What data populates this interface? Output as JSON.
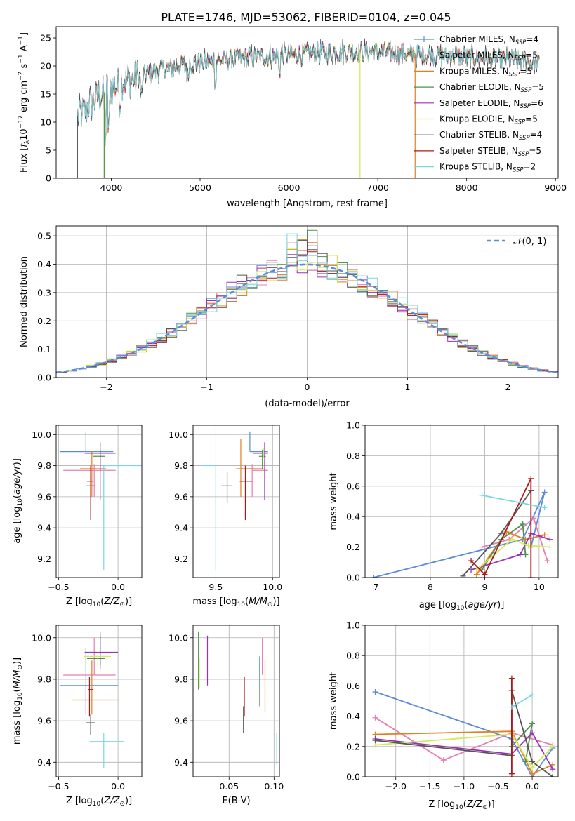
{
  "figure_title": "PLATE=1746, MJD=53062, FIBERID=0104, z=0.045",
  "colors": {
    "chabrier_miles": "#5b8bd9",
    "salpeter_miles": "#e57fb4",
    "kroupa_miles": "#e07f24",
    "chabrier_elodie": "#4f8f4f",
    "salpeter_elodie": "#9a32b5",
    "kroupa_elodie": "#d4ea5a",
    "chabrier_stelib": "#555555",
    "salpeter_stelib": "#aa1818",
    "kroupa_stelib": "#7dd6dd",
    "grid": "#b0b0b0",
    "normal": "#5b8bd9"
  },
  "chart_data": [
    {
      "id": "spectrum",
      "type": "line",
      "xlabel": "wavelength [Angstrom, rest frame]",
      "ylabel": "Flux [f_λ10^-17 erg cm^-2 s^-1 A^-1]",
      "xlim": [
        3380,
        9030
      ],
      "ylim": [
        0,
        27
      ],
      "xticks": [
        4000,
        5000,
        6000,
        7000,
        8000,
        9000
      ],
      "yticks": [
        0,
        5,
        10,
        15,
        20,
        25
      ],
      "grid": false,
      "legend_position": "right",
      "series": [
        {
          "name": "Chabrier MILES, N_SSP=4",
          "label_main": "Chabrier MILES, N",
          "label_sub": "SSP",
          "label_tail": "=4",
          "color": "#5b8bd9",
          "marker": true
        },
        {
          "name": "Salpeter MILES, N_SSP=5",
          "label_main": "Salpeter MILES, N",
          "label_sub": "SSP",
          "label_tail": "=5",
          "color": "#e57fb4",
          "marker": false
        },
        {
          "name": "Kroupa MILES, N_SSP=5",
          "label_main": "Kroupa MILES, N",
          "label_sub": "SSP",
          "label_tail": "=5",
          "color": "#e07f24",
          "marker": false
        },
        {
          "name": "Chabrier ELODIE, N_SSP=5",
          "label_main": "Chabrier ELODIE, N",
          "label_sub": "SSP",
          "label_tail": "=5",
          "color": "#4f8f4f",
          "marker": false
        },
        {
          "name": "Salpeter ELODIE, N_SSP=6",
          "label_main": "Salpeter ELODIE, N",
          "label_sub": "SSP",
          "label_tail": "=6",
          "color": "#9a32b5",
          "marker": false
        },
        {
          "name": "Kroupa ELODIE, N_SSP=5",
          "label_main": "Kroupa ELODIE, N",
          "label_sub": "SSP",
          "label_tail": "=5",
          "color": "#d4ea5a",
          "marker": false
        },
        {
          "name": "Chabrier STELIB, N_SSP=4",
          "label_main": "Chabrier STELIB, N",
          "label_sub": "SSP",
          "label_tail": "=4",
          "color": "#555555",
          "marker": false
        },
        {
          "name": "Salpeter STELIB, N_SSP=5",
          "label_main": "Salpeter STELIB, N",
          "label_sub": "SSP",
          "label_tail": "=5",
          "color": "#aa1818",
          "marker": false
        },
        {
          "name": "Kroupa STELIB, N_SSP=2",
          "label_main": "Kroupa STELIB, N",
          "label_sub": "SSP",
          "label_tail": "=2",
          "color": "#7dd6dd",
          "marker": false
        }
      ],
      "spectrum_shape": {
        "start": 3620,
        "end": 8820,
        "anchors": [
          [
            3620,
            11
          ],
          [
            3700,
            12
          ],
          [
            3800,
            14
          ],
          [
            3900,
            15
          ],
          [
            4000,
            16
          ],
          [
            4100,
            17
          ],
          [
            4300,
            18
          ],
          [
            4600,
            19.5
          ],
          [
            5000,
            20.5
          ],
          [
            5500,
            21.5
          ],
          [
            6000,
            22
          ],
          [
            6500,
            22.5
          ],
          [
            7000,
            22.5
          ],
          [
            7500,
            22
          ],
          [
            8000,
            21.5
          ],
          [
            8500,
            21
          ],
          [
            8820,
            20.5
          ]
        ]
      }
    },
    {
      "id": "residuals",
      "type": "line",
      "xlabel": "(data-model)/error",
      "ylabel": "Normed distribution",
      "xlim": [
        -2.5,
        2.5
      ],
      "ylim": [
        0,
        0.535
      ],
      "xticks": [
        -2,
        -1,
        0,
        1,
        2
      ],
      "yticks": [
        0.0,
        0.1,
        0.2,
        0.3,
        0.4,
        0.5
      ],
      "grid": true,
      "legend_position": "top-right",
      "normal_label": "𝒩(0, 1)",
      "bin_width": 0.1
    },
    {
      "id": "age_vs_Z",
      "type": "scatter",
      "xlabel": "Z [log10(Z/Z⊙)]",
      "ylabel": "age  [log10(age/yr)]",
      "xlim": [
        -0.52,
        0.2
      ],
      "ylim": [
        9.08,
        10.06
      ],
      "xticks": [
        -0.5,
        0.0
      ],
      "yticks": [
        9.2,
        9.4,
        9.6,
        9.8,
        10.0
      ],
      "grid": true,
      "points": [
        {
          "color": "#5b8bd9",
          "x": -0.27,
          "xerr": [
            0.22,
            0.23
          ],
          "y": 9.89,
          "yerr": [
            0.0,
            0.13
          ]
        },
        {
          "color": "#e57fb4",
          "x": -0.2,
          "xerr": [
            0.26,
            0.18
          ],
          "y": 9.77,
          "yerr": [
            0.17,
            0.04
          ]
        },
        {
          "color": "#e07f24",
          "x": -0.22,
          "xerr": [
            0.1,
            0.12
          ],
          "y": 9.78,
          "yerr": [
            0.18,
            0.11
          ]
        },
        {
          "color": "#4f8f4f",
          "x": -0.15,
          "xerr": [
            0.06,
            0.04
          ],
          "y": 9.86,
          "yerr": [
            0.08,
            0.04
          ]
        },
        {
          "color": "#9a32b5",
          "x": -0.15,
          "xerr": [
            0.13,
            0.13
          ],
          "y": 9.88,
          "yerr": [
            0.3,
            0.07
          ]
        },
        {
          "color": "#d4ea5a",
          "x": -0.17,
          "xerr": [
            0.08,
            0.13
          ],
          "y": 9.9,
          "yerr": [
            0.05,
            0.01
          ]
        },
        {
          "color": "#555555",
          "x": -0.23,
          "xerr": [
            0.04,
            0.04
          ],
          "y": 9.67,
          "yerr": [
            0.06,
            0.06
          ]
        },
        {
          "color": "#aa1818",
          "x": -0.23,
          "xerr": [
            0.03,
            0.02
          ],
          "y": 9.7,
          "yerr": [
            0.25,
            0.1
          ]
        },
        {
          "color": "#7dd6dd",
          "x": -0.12,
          "xerr": [
            0.0,
            0.32
          ],
          "y": 9.8,
          "yerr": [
            0.67,
            0.0
          ]
        }
      ]
    },
    {
      "id": "age_vs_mass",
      "type": "scatter",
      "xlabel": "mass [log10(M/M⊙)]",
      "ylabel": "",
      "xlim": [
        9.3,
        10.06
      ],
      "ylim": [
        9.08,
        10.06
      ],
      "xticks": [
        9.5,
        10.0
      ],
      "yticks": [
        9.2,
        9.4,
        9.6,
        9.8,
        10.0
      ],
      "grid": true,
      "points": [
        {
          "color": "#5b8bd9",
          "x": 9.8,
          "xerr": [
            0.0,
            0.16
          ],
          "y": 9.89,
          "yerr": [
            0.0,
            0.13
          ]
        },
        {
          "color": "#e57fb4",
          "x": 9.82,
          "xerr": [
            0.0,
            0.14
          ],
          "y": 9.77,
          "yerr": [
            0.17,
            0.04
          ]
        },
        {
          "color": "#e07f24",
          "x": 9.72,
          "xerr": [
            0.04,
            0.2
          ],
          "y": 9.78,
          "yerr": [
            0.18,
            0.19
          ]
        },
        {
          "color": "#4f8f4f",
          "x": 9.91,
          "xerr": [
            0.03,
            0.03
          ],
          "y": 9.86,
          "yerr": [
            0.08,
            0.04
          ]
        },
        {
          "color": "#9a32b5",
          "x": 9.93,
          "xerr": [
            0.1,
            0.03
          ],
          "y": 9.88,
          "yerr": [
            0.3,
            0.07
          ]
        },
        {
          "color": "#d4ea5a",
          "x": 9.92,
          "xerr": [
            0.05,
            0.05
          ],
          "y": 9.9,
          "yerr": [
            0.05,
            0.01
          ]
        },
        {
          "color": "#555555",
          "x": 9.6,
          "xerr": [
            0.05,
            0.04
          ],
          "y": 9.67,
          "yerr": [
            0.11,
            0.09
          ]
        },
        {
          "color": "#aa1818",
          "x": 9.76,
          "xerr": [
            0.05,
            0.06
          ],
          "y": 9.7,
          "yerr": [
            0.25,
            0.1
          ]
        },
        {
          "color": "#7dd6dd",
          "x": 9.5,
          "xerr": [
            0.12,
            0.0
          ],
          "y": 9.8,
          "yerr": [
            0.67,
            0.0
          ]
        }
      ]
    },
    {
      "id": "mass_vs_Z",
      "type": "scatter",
      "xlabel": "Z [log10(Z/Z⊙)]",
      "ylabel": "mass [log10(M/M⊙)]",
      "xlim": [
        -0.52,
        0.2
      ],
      "ylim": [
        9.33,
        10.06
      ],
      "xticks": [
        -0.5,
        0.0
      ],
      "yticks": [
        9.4,
        9.6,
        9.8,
        10.0
      ],
      "grid": true,
      "points": [
        {
          "color": "#5b8bd9",
          "x": -0.27,
          "xerr": [
            0.22,
            0.27
          ],
          "y": 9.77,
          "yerr": [
            0.14,
            0.18
          ]
        },
        {
          "color": "#e57fb4",
          "x": -0.2,
          "xerr": [
            0.26,
            0.18
          ],
          "y": 9.82,
          "yerr": [
            0.0,
            0.18
          ]
        },
        {
          "color": "#e07f24",
          "x": -0.22,
          "xerr": [
            0.17,
            0.22
          ],
          "y": 9.7,
          "yerr": [
            0.07,
            0.19
          ]
        },
        {
          "color": "#4f8f4f",
          "x": -0.15,
          "xerr": [
            0.11,
            0.04
          ],
          "y": 9.9,
          "yerr": [
            0.05,
            0.13
          ]
        },
        {
          "color": "#9a32b5",
          "x": -0.15,
          "xerr": [
            0.13,
            0.15
          ],
          "y": 9.93,
          "yerr": [
            0.06,
            0.08
          ]
        },
        {
          "color": "#d4ea5a",
          "x": -0.17,
          "xerr": [
            0.12,
            0.11
          ],
          "y": 9.91,
          "yerr": [
            0.05,
            0.02
          ]
        },
        {
          "color": "#555555",
          "x": -0.23,
          "xerr": [
            0.04,
            0.04
          ],
          "y": 9.59,
          "yerr": [
            0.06,
            0.04
          ]
        },
        {
          "color": "#aa1818",
          "x": -0.24,
          "xerr": [
            0.01,
            0.03
          ],
          "y": 9.75,
          "yerr": [
            0.13,
            0.06
          ]
        },
        {
          "color": "#7dd6dd",
          "x": -0.12,
          "xerr": [
            0.12,
            0.17
          ],
          "y": 9.5,
          "yerr": [
            0.13,
            0.04
          ]
        }
      ]
    },
    {
      "id": "mass_vs_ebv",
      "type": "scatter",
      "xlabel": "E(B-V)",
      "ylabel": "",
      "xlim": [
        0.01,
        0.106
      ],
      "ylim": [
        9.33,
        10.06
      ],
      "xticks": [
        0.05,
        0.1
      ],
      "yticks": [
        9.4,
        9.6,
        9.8,
        10.0
      ],
      "grid": true,
      "points": [
        {
          "color": "#5b8bd9",
          "x": 0.084,
          "xerr": [
            0,
            0
          ],
          "y": 9.77,
          "yerr": [
            0.1,
            0.14
          ]
        },
        {
          "color": "#e57fb4",
          "x": 0.087,
          "xerr": [
            0,
            0
          ],
          "y": 9.82,
          "yerr": [
            0.0,
            0.18
          ]
        },
        {
          "color": "#e07f24",
          "x": 0.09,
          "xerr": [
            0,
            0
          ],
          "y": 9.7,
          "yerr": [
            0.06,
            0.19
          ]
        },
        {
          "color": "#4f8f4f",
          "x": 0.016,
          "xerr": [
            0,
            0
          ],
          "y": 9.9,
          "yerr": [
            0.15,
            0.13
          ]
        },
        {
          "color": "#9a32b5",
          "x": 0.026,
          "xerr": [
            0,
            0
          ],
          "y": 9.93,
          "yerr": [
            0.16,
            0.08
          ]
        },
        {
          "color": "#d4ea5a",
          "x": 0.017,
          "xerr": [
            0,
            0
          ],
          "y": 9.9,
          "yerr": [
            0.14,
            0.0
          ]
        },
        {
          "color": "#555555",
          "x": 0.066,
          "xerr": [
            0,
            0
          ],
          "y": 9.62,
          "yerr": [
            0.08,
            0.05
          ]
        },
        {
          "color": "#aa1818",
          "x": 0.067,
          "xerr": [
            0,
            0
          ],
          "y": 9.75,
          "yerr": [
            0.13,
            0.06
          ]
        },
        {
          "color": "#7dd6dd",
          "x": 0.103,
          "xerr": [
            0,
            0
          ],
          "y": 9.45,
          "yerr": [
            0.06,
            0.09
          ]
        }
      ]
    },
    {
      "id": "weight_vs_age",
      "type": "line",
      "xlabel": "age  [log10(age/yr)]",
      "ylabel": "mass weight",
      "xlim": [
        6.8,
        10.35
      ],
      "ylim": [
        0,
        1
      ],
      "xticks": [
        7,
        8,
        9,
        10
      ],
      "yticks": [
        0.0,
        0.2,
        0.4,
        0.6,
        0.8,
        1.0
      ],
      "grid": true,
      "series": [
        {
          "color": "#5b8bd9",
          "x": [
            6.95,
            9.7,
            10.1,
            9.85
          ],
          "y": [
            0.0,
            0.25,
            0.56,
            0.2
          ]
        },
        {
          "color": "#e57fb4",
          "x": [
            8.95,
            9.45,
            9.9,
            10.15
          ],
          "y": [
            0.2,
            0.25,
            0.39,
            0.11
          ]
        },
        {
          "color": "#e07f24",
          "x": [
            8.85,
            9.4,
            9.75,
            10.1
          ],
          "y": [
            0.02,
            0.3,
            0.25,
            0.28
          ]
        },
        {
          "color": "#4f8f4f",
          "x": [
            8.95,
            9.3,
            9.7,
            9.75
          ],
          "y": [
            0.05,
            0.25,
            0.35,
            0.15
          ]
        },
        {
          "color": "#9a32b5",
          "x": [
            8.75,
            9.65,
            9.85,
            10.2
          ],
          "y": [
            0.05,
            0.15,
            0.29,
            0.25
          ]
        },
        {
          "color": "#d4ea5a",
          "x": [
            8.85,
            9.5,
            9.8,
            10.2
          ],
          "y": [
            0.05,
            0.25,
            0.21,
            0.2
          ]
        },
        {
          "color": "#555555",
          "x": [
            8.6,
            9.3,
            9.85
          ],
          "y": [
            0.01,
            0.29,
            0.57
          ]
        },
        {
          "color": "#aa1818",
          "x": [
            8.75,
            9.0,
            9.85,
            9.85
          ],
          "y": [
            0.11,
            0.02,
            0.65,
            0.0
          ]
        },
        {
          "color": "#7dd6dd",
          "x": [
            8.95,
            10.1
          ],
          "y": [
            0.54,
            0.46
          ]
        }
      ]
    },
    {
      "id": "weight_vs_Z",
      "type": "line",
      "xlabel": "Z [log10(Z/Z⊙)]",
      "ylabel": "mass weight",
      "xlim": [
        -2.45,
        0.38
      ],
      "ylim": [
        0,
        1
      ],
      "xticks": [
        -2.0,
        -1.5,
        -1.0,
        -0.5,
        0.0
      ],
      "yticks": [
        0.0,
        0.2,
        0.4,
        0.6,
        0.8,
        1.0
      ],
      "grid": true,
      "series": [
        {
          "color": "#5b8bd9",
          "x": [
            -2.3,
            -0.3,
            0.0,
            0.3
          ],
          "y": [
            0.56,
            0.25,
            0.0,
            0.19
          ]
        },
        {
          "color": "#e57fb4",
          "x": [
            -2.3,
            -1.3,
            -0.3,
            0.3
          ],
          "y": [
            0.39,
            0.11,
            0.29,
            0.21
          ]
        },
        {
          "color": "#e07f24",
          "x": [
            -2.3,
            -0.3,
            0.0,
            0.3
          ],
          "y": [
            0.28,
            0.3,
            0.02,
            0.08
          ]
        },
        {
          "color": "#4f8f4f",
          "x": [
            -0.3,
            0.0,
            -0.1
          ],
          "y": [
            0.2,
            0.35,
            0.1
          ]
        },
        {
          "color": "#9a32b5",
          "x": [
            -2.3,
            -0.3,
            0.0,
            0.3
          ],
          "y": [
            0.25,
            0.15,
            0.29,
            0.05
          ]
        },
        {
          "color": "#d4ea5a",
          "x": [
            -2.3,
            -0.3,
            0.0,
            0.3
          ],
          "y": [
            0.21,
            0.28,
            0.06,
            0.2
          ]
        },
        {
          "color": "#555555",
          "x": [
            -2.3,
            -0.3,
            -0.3,
            0.0,
            0.3
          ],
          "y": [
            0.24,
            0.14,
            0.57,
            0.1,
            0.0
          ]
        },
        {
          "color": "#aa1818",
          "x": [
            -0.3,
            -0.3
          ],
          "y": [
            0.65,
            0.02
          ]
        },
        {
          "color": "#7dd6dd",
          "x": [
            -0.3,
            0.0
          ],
          "y": [
            0.46,
            0.54
          ]
        }
      ]
    }
  ]
}
